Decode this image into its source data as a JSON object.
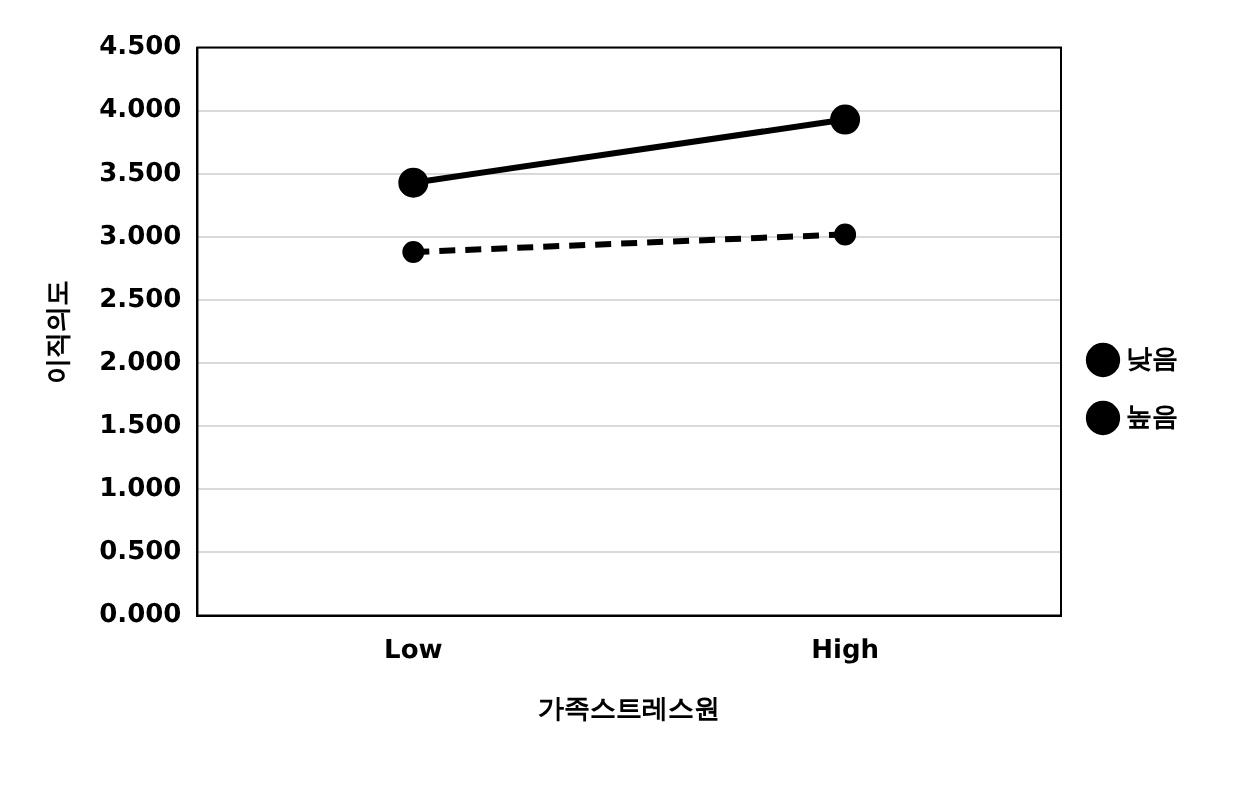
{
  "chart_data": {
    "type": "line",
    "xlabel": "가족스트레스원",
    "ylabel": "이직의도",
    "categories": [
      "Low",
      "High"
    ],
    "series": [
      {
        "name": "낮음",
        "color": "#000000",
        "values": [
          2.88,
          3.02
        ],
        "line_style": "dashed"
      },
      {
        "name": "높음",
        "color": "#000000",
        "values": [
          3.43,
          3.93
        ],
        "line_style": "solid"
      }
    ],
    "ylim": [
      0,
      4.5
    ],
    "yticks": [
      {
        "value": 0,
        "label": "0.000"
      },
      {
        "value": 0.5,
        "label": "0.500"
      },
      {
        "value": 1,
        "label": "1.000"
      },
      {
        "value": 1.5,
        "label": "1.500"
      },
      {
        "value": 2,
        "label": "2.000"
      },
      {
        "value": 2.5,
        "label": "2.500"
      },
      {
        "value": 3,
        "label": "3.000"
      },
      {
        "value": 3.5,
        "label": "3.500"
      },
      {
        "value": 4,
        "label": "4.000"
      },
      {
        "value": 4.5,
        "label": "4.500"
      }
    ],
    "grid": "y",
    "legend": "right",
    "marker": "circle"
  }
}
